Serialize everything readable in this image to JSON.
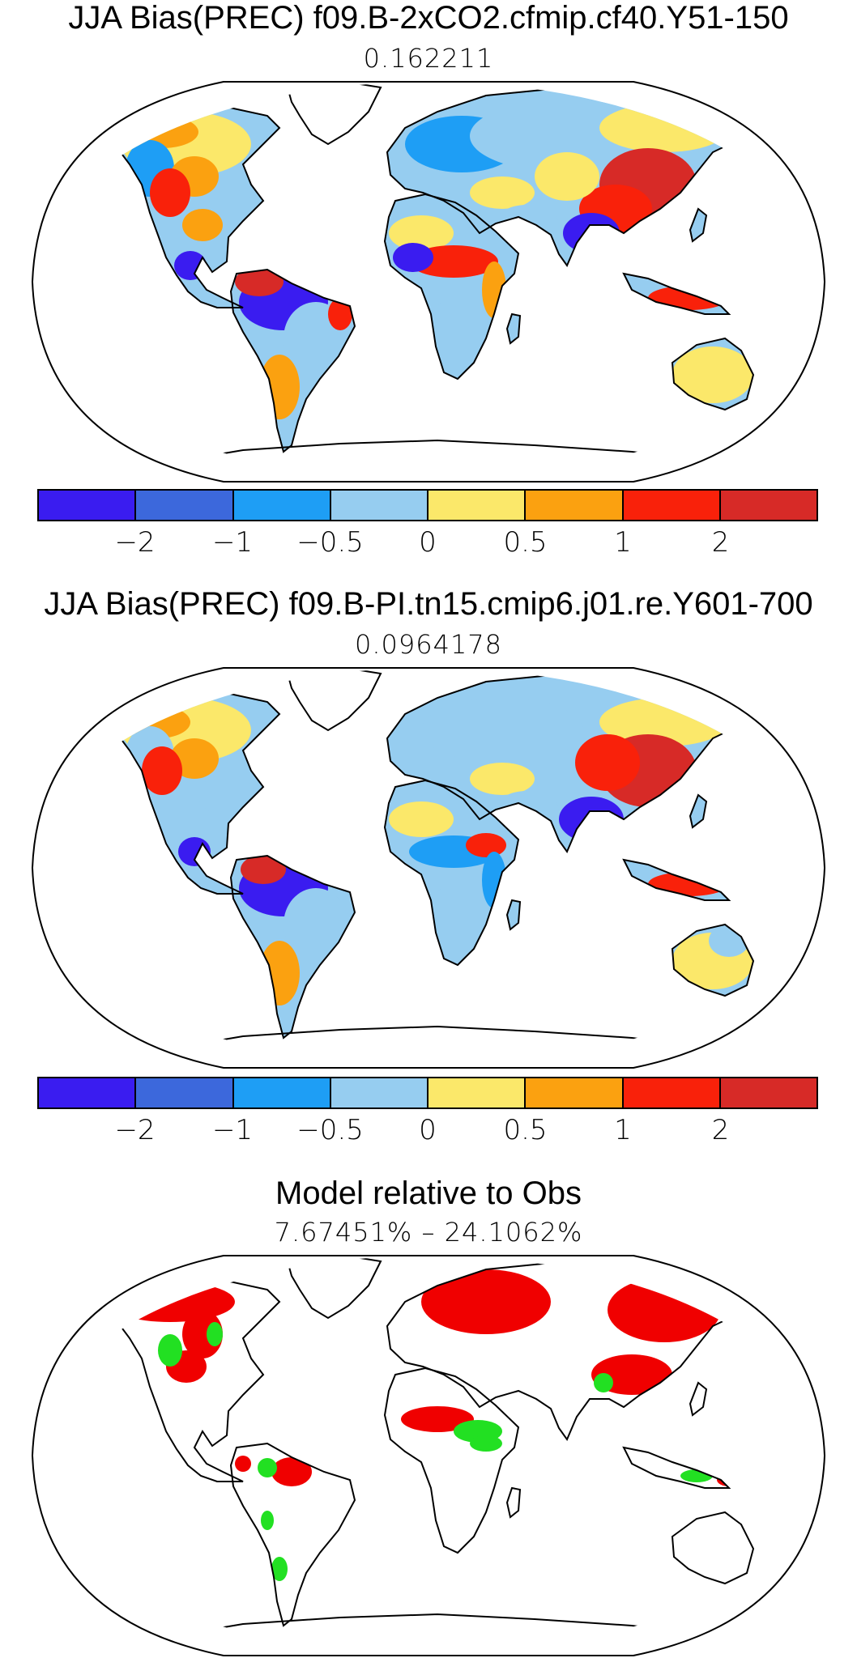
{
  "panels": [
    {
      "title": "JJA Bias(PREC) f09.B-2xCO2.cfmip.cf40.Y51-150",
      "subtitle": "0.162211"
    },
    {
      "title": "JJA Bias(PREC) f09.B-PI.tn15.cmip6.j01.re.Y601-700",
      "subtitle": "0.0964178"
    },
    {
      "title": "Model relative to Obs",
      "subtitle": "7.67451% – 24.1062%"
    }
  ],
  "colorbar": {
    "colors": [
      "#3a1cf0",
      "#3c68dc",
      "#1e9ef5",
      "#96cdf0",
      "#fbe86a",
      "#fba110",
      "#f9210a",
      "#d72a27"
    ],
    "labels": [
      "−2",
      "−1",
      "−0.5",
      "0",
      "0.5",
      "1",
      "2"
    ]
  },
  "map_colors": {
    "wet_bias_strong": "#d72a27",
    "wet_bias": "#f9210a",
    "wet_bias_light": "#fba110",
    "slight_wet": "#fbe86a",
    "slight_dry": "#96cdf0",
    "dry": "#1e9ef5",
    "dry_strong": "#3a1cf0",
    "better": "#22e022",
    "worse": "#f00000"
  }
}
